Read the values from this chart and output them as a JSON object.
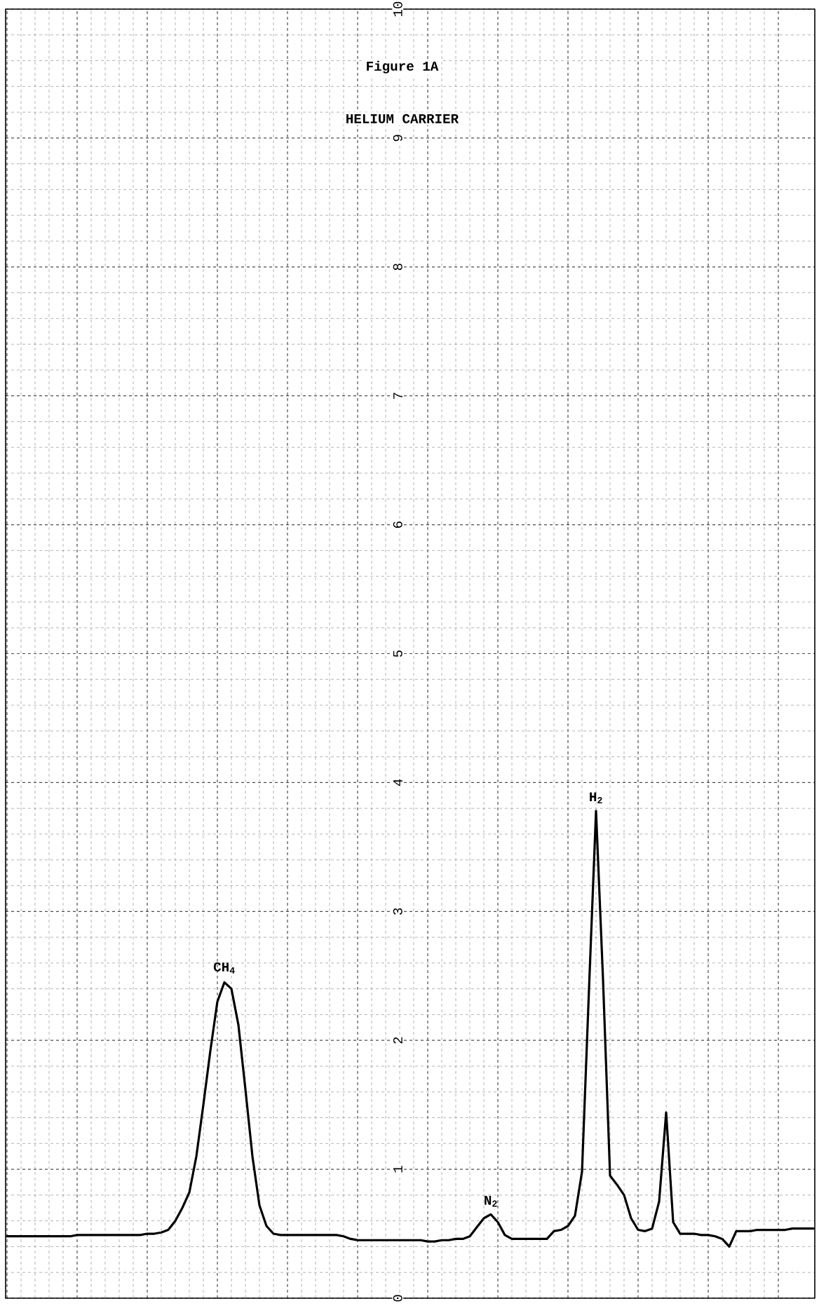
{
  "chart_data": {
    "type": "line",
    "title": "Figure 1A",
    "subtitle": "HELIUM CARRIER",
    "categories": [
      null,
      null,
      null,
      null,
      null,
      null,
      null,
      null,
      null,
      null,
      null,
      null,
      null,
      null,
      null,
      null,
      null,
      null,
      null,
      null,
      null,
      null,
      null,
      null,
      null,
      null,
      null,
      null,
      null,
      null,
      null,
      null,
      null,
      null,
      null,
      null,
      null,
      null,
      null,
      null,
      null,
      null,
      null,
      null,
      null,
      null,
      null,
      null,
      null,
      null,
      null,
      null,
      null,
      null,
      null,
      null,
      null,
      null,
      null,
      null,
      null,
      null,
      null,
      null,
      null,
      null,
      null,
      null,
      null,
      null,
      null,
      null,
      null,
      null,
      null,
      null,
      null,
      null,
      null,
      null,
      null,
      null,
      null,
      null,
      null,
      null,
      null,
      null,
      null,
      null,
      null,
      null,
      null,
      null,
      null,
      null,
      null,
      null,
      null,
      null,
      null,
      null,
      null,
      null,
      null,
      null,
      null,
      null,
      null,
      null,
      null,
      null,
      null,
      null,
      null,
      null
    ],
    "series": [
      {
        "color": "#000000",
        "values": [
          0.48,
          0.48,
          0.48,
          0.48,
          0.48,
          0.48,
          0.48,
          0.48,
          0.48,
          0.48,
          0.49,
          0.49,
          0.49,
          0.49,
          0.49,
          0.49,
          0.49,
          0.49,
          0.49,
          0.49,
          0.5,
          0.5,
          0.51,
          0.53,
          0.6,
          0.7,
          0.82,
          1.1,
          1.5,
          1.92,
          2.3,
          2.45,
          2.4,
          2.12,
          1.62,
          1.1,
          0.72,
          0.56,
          0.5,
          0.49,
          0.49,
          0.49,
          0.49,
          0.49,
          0.49,
          0.49,
          0.49,
          0.49,
          0.48,
          0.46,
          0.45,
          0.45,
          0.45,
          0.45,
          0.45,
          0.45,
          0.45,
          0.45,
          0.45,
          0.45,
          0.44,
          0.44,
          0.45,
          0.45,
          0.46,
          0.46,
          0.48,
          0.55,
          0.62,
          0.65,
          0.59,
          0.49,
          0.46,
          0.46,
          0.46,
          0.46,
          0.46,
          0.46,
          0.52,
          0.53,
          0.56,
          0.64,
          0.98,
          2.4,
          3.78,
          2.47,
          0.95,
          0.88,
          0.8,
          0.62,
          0.53,
          0.52,
          0.54,
          0.75,
          1.44,
          0.59,
          0.5,
          0.5,
          0.5,
          0.49,
          0.49,
          0.48,
          0.46,
          0.4,
          0.52,
          0.52,
          0.52,
          0.53,
          0.53,
          0.53,
          0.53,
          0.53,
          0.54,
          0.54,
          0.54,
          0.54
        ]
      }
    ],
    "ylim": [
      0,
      10
    ],
    "yticks": [
      0,
      1,
      2,
      3,
      4,
      5,
      6,
      7,
      8,
      9,
      10
    ],
    "grid": true,
    "tick_labels": "y",
    "annotations": [
      {
        "text": "CH$_{4}$",
        "y": 2.46
      },
      {
        "text": "N$_{2}$",
        "y": 0.65
      },
      {
        "text": "H$_{2}$",
        "y": 3.78
      }
    ]
  }
}
